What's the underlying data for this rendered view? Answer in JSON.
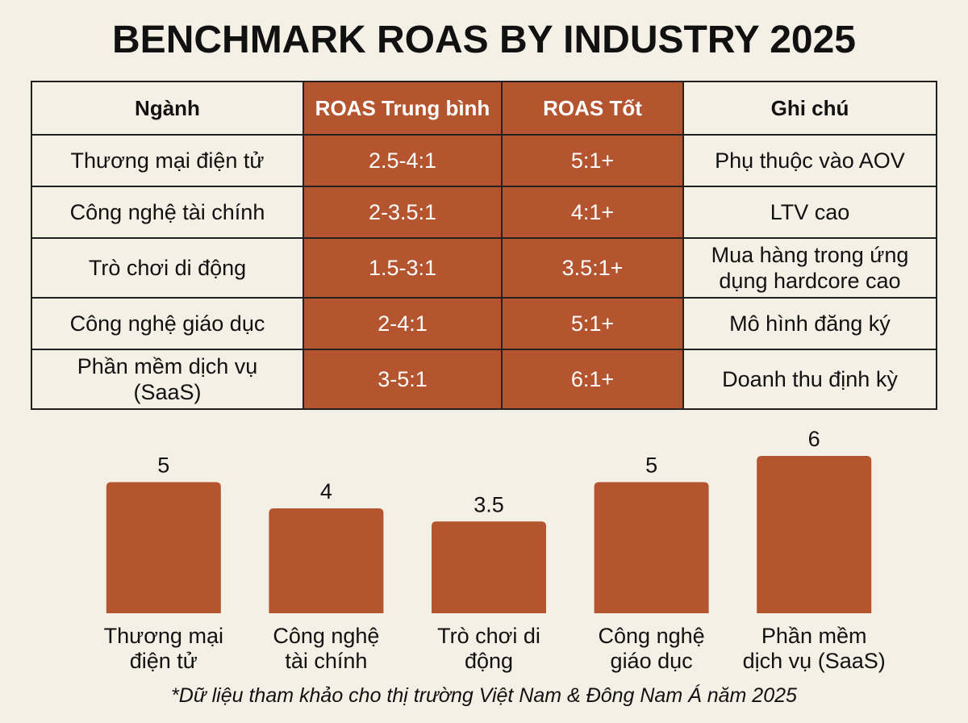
{
  "title": "BENCHMARK ROAS BY INDUSTRY 2025",
  "table": {
    "header": [
      "Ngành",
      "ROAS Trung bình",
      "ROAS Tốt",
      "Ghi chú"
    ],
    "rows": [
      [
        "Thương mại điện tử",
        "2.5-4:1",
        "5:1+",
        "Phụ thuộc vào AOV"
      ],
      [
        "Công nghệ tài chính",
        "2-3.5:1",
        "4:1+",
        "LTV cao"
      ],
      [
        "Trò chơi di động",
        "1.5-3:1",
        "3.5:1+",
        "Mua hàng trong ứng dụng hardcore cao"
      ],
      [
        "Công nghệ giáo dục",
        "2-4:1",
        "5:1+",
        "Mô hình đăng ký"
      ],
      [
        "Phần mềm dịch vụ (SaaS)",
        "3-5:1",
        "6:1+",
        "Doanh thu định kỳ"
      ]
    ]
  },
  "chart_data": {
    "type": "bar",
    "categories": [
      [
        "Thương mại",
        "điện tử"
      ],
      [
        "Công nghệ",
        "tài chính"
      ],
      [
        "Trò chơi di",
        "động"
      ],
      [
        "Công nghệ",
        "giáo dục"
      ],
      [
        "Phần mềm",
        "dịch vụ (SaaS)"
      ]
    ],
    "values": [
      5,
      4,
      3.5,
      5,
      6
    ],
    "color": "#b4552f"
  },
  "footnote": "*Dữ liệu tham khảo cho thị trường Việt Nam & Đông Nam Á năm 2025"
}
